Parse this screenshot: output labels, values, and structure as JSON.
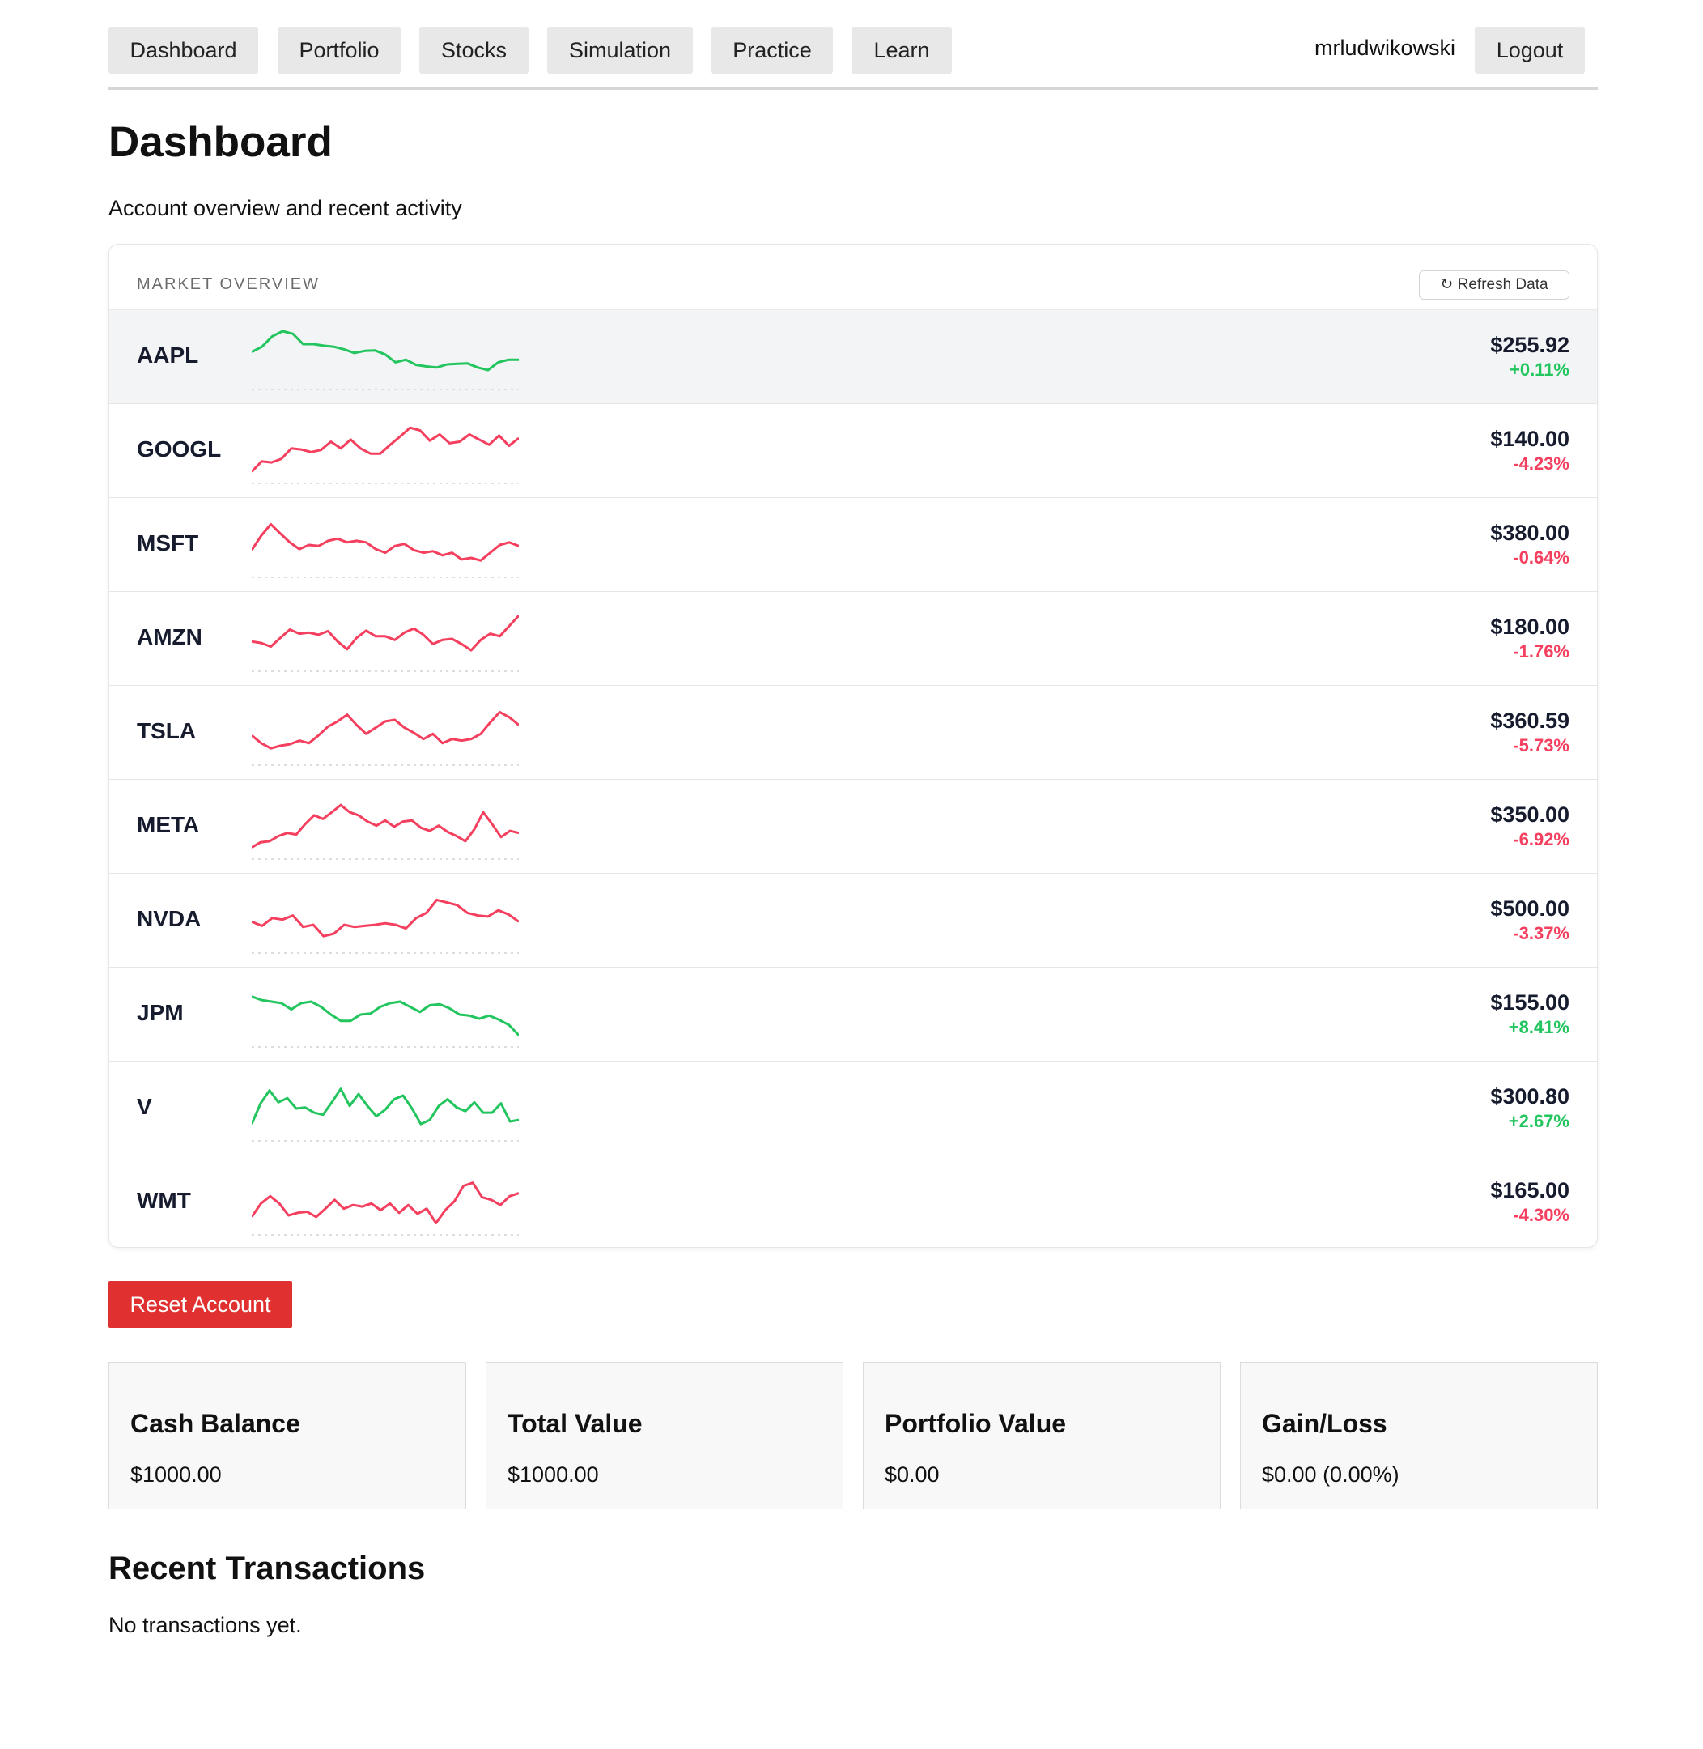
{
  "nav": {
    "items": [
      "Dashboard",
      "Portfolio",
      "Stocks",
      "Simulation",
      "Practice",
      "Learn"
    ],
    "username": "mrludwikowski",
    "logout_label": "Logout"
  },
  "header": {
    "title": "Dashboard",
    "subtitle": "Account overview and recent activity"
  },
  "market": {
    "label": "MARKET OVERVIEW",
    "refresh_label": "↻ Refresh Data",
    "colors": {
      "up": "#22c55e",
      "down": "#f43f5e"
    },
    "stocks": [
      {
        "symbol": "AAPL",
        "price": "$255.92",
        "change": "+0.11%",
        "direction": "up",
        "trend": [
          0.6,
          0.7,
          0.9,
          1.0,
          0.95,
          0.75,
          0.75,
          0.72,
          0.7,
          0.65,
          0.58,
          0.62,
          0.63,
          0.55,
          0.4,
          0.45,
          0.35,
          0.32,
          0.3,
          0.36,
          0.37,
          0.38,
          0.3,
          0.25,
          0.4,
          0.45,
          0.45
        ]
      },
      {
        "symbol": "GOOGL",
        "price": "$140.00",
        "change": "-4.23%",
        "direction": "down",
        "trend": [
          0.1,
          0.3,
          0.28,
          0.35,
          0.55,
          0.53,
          0.48,
          0.52,
          0.68,
          0.55,
          0.72,
          0.55,
          0.45,
          0.45,
          0.62,
          0.78,
          0.95,
          0.9,
          0.7,
          0.82,
          0.65,
          0.68,
          0.82,
          0.72,
          0.62,
          0.8,
          0.6,
          0.75
        ]
      },
      {
        "symbol": "MSFT",
        "price": "$380.00",
        "change": "-0.64%",
        "direction": "down",
        "trend": [
          0.4,
          0.68,
          0.9,
          0.72,
          0.55,
          0.42,
          0.5,
          0.48,
          0.58,
          0.62,
          0.55,
          0.58,
          0.55,
          0.42,
          0.35,
          0.48,
          0.52,
          0.4,
          0.35,
          0.38,
          0.3,
          0.35,
          0.22,
          0.25,
          0.2,
          0.35,
          0.5,
          0.55,
          0.48
        ]
      },
      {
        "symbol": "AMZN",
        "price": "$180.00",
        "change": "-1.76%",
        "direction": "down",
        "trend": [
          0.45,
          0.42,
          0.35,
          0.52,
          0.68,
          0.6,
          0.62,
          0.58,
          0.65,
          0.45,
          0.3,
          0.52,
          0.66,
          0.55,
          0.55,
          0.48,
          0.62,
          0.7,
          0.58,
          0.4,
          0.48,
          0.5,
          0.4,
          0.28,
          0.48,
          0.6,
          0.55,
          0.75,
          0.95
        ]
      },
      {
        "symbol": "TSLA",
        "price": "$360.59",
        "change": "-5.73%",
        "direction": "down",
        "trend": [
          0.45,
          0.3,
          0.2,
          0.25,
          0.28,
          0.35,
          0.3,
          0.45,
          0.62,
          0.72,
          0.85,
          0.65,
          0.48,
          0.6,
          0.72,
          0.75,
          0.6,
          0.5,
          0.38,
          0.48,
          0.3,
          0.38,
          0.35,
          0.38,
          0.48,
          0.7,
          0.9,
          0.8,
          0.65
        ]
      },
      {
        "symbol": "META",
        "price": "$350.00",
        "change": "-6.92%",
        "direction": "down",
        "trend": [
          0.1,
          0.2,
          0.22,
          0.32,
          0.38,
          0.35,
          0.55,
          0.72,
          0.65,
          0.78,
          0.92,
          0.78,
          0.72,
          0.6,
          0.52,
          0.62,
          0.5,
          0.6,
          0.62,
          0.48,
          0.42,
          0.52,
          0.4,
          0.32,
          0.22,
          0.45,
          0.78,
          0.55,
          0.3,
          0.42,
          0.38
        ]
      },
      {
        "symbol": "NVDA",
        "price": "$500.00",
        "change": "-3.37%",
        "direction": "down",
        "trend": [
          0.48,
          0.4,
          0.55,
          0.52,
          0.6,
          0.38,
          0.42,
          0.2,
          0.25,
          0.42,
          0.38,
          0.4,
          0.42,
          0.45,
          0.42,
          0.35,
          0.55,
          0.65,
          0.9,
          0.85,
          0.8,
          0.65,
          0.6,
          0.58,
          0.7,
          0.62,
          0.48
        ]
      },
      {
        "symbol": "JPM",
        "price": "$155.00",
        "change": "+8.41%",
        "direction": "up",
        "trend": [
          0.85,
          0.78,
          0.75,
          0.72,
          0.6,
          0.72,
          0.75,
          0.65,
          0.5,
          0.38,
          0.38,
          0.5,
          0.52,
          0.65,
          0.72,
          0.75,
          0.65,
          0.55,
          0.68,
          0.7,
          0.62,
          0.5,
          0.48,
          0.42,
          0.48,
          0.4,
          0.3,
          0.1
        ]
      },
      {
        "symbol": "V",
        "price": "$300.80",
        "change": "+2.67%",
        "direction": "up",
        "trend": [
          0.2,
          0.6,
          0.85,
          0.62,
          0.7,
          0.5,
          0.52,
          0.42,
          0.38,
          0.62,
          0.88,
          0.55,
          0.78,
          0.55,
          0.35,
          0.48,
          0.68,
          0.75,
          0.5,
          0.2,
          0.28,
          0.55,
          0.68,
          0.52,
          0.45,
          0.62,
          0.42,
          0.42,
          0.6,
          0.25,
          0.28
        ]
      },
      {
        "symbol": "WMT",
        "price": "$165.00",
        "change": "-4.30%",
        "direction": "down",
        "trend": [
          0.22,
          0.48,
          0.62,
          0.48,
          0.25,
          0.3,
          0.32,
          0.22,
          0.38,
          0.55,
          0.38,
          0.45,
          0.42,
          0.48,
          0.35,
          0.48,
          0.3,
          0.45,
          0.28,
          0.38,
          0.1,
          0.35,
          0.52,
          0.82,
          0.88,
          0.6,
          0.55,
          0.45,
          0.62,
          0.68
        ]
      }
    ]
  },
  "actions": {
    "reset_label": "Reset Account"
  },
  "summary": [
    {
      "title": "Cash Balance",
      "value": "$1000.00"
    },
    {
      "title": "Total Value",
      "value": "$1000.00"
    },
    {
      "title": "Portfolio Value",
      "value": "$0.00"
    },
    {
      "title": "Gain/Loss",
      "value": "$0.00 (0.00%)"
    }
  ],
  "transactions": {
    "title": "Recent Transactions",
    "empty_text": "No transactions yet."
  }
}
